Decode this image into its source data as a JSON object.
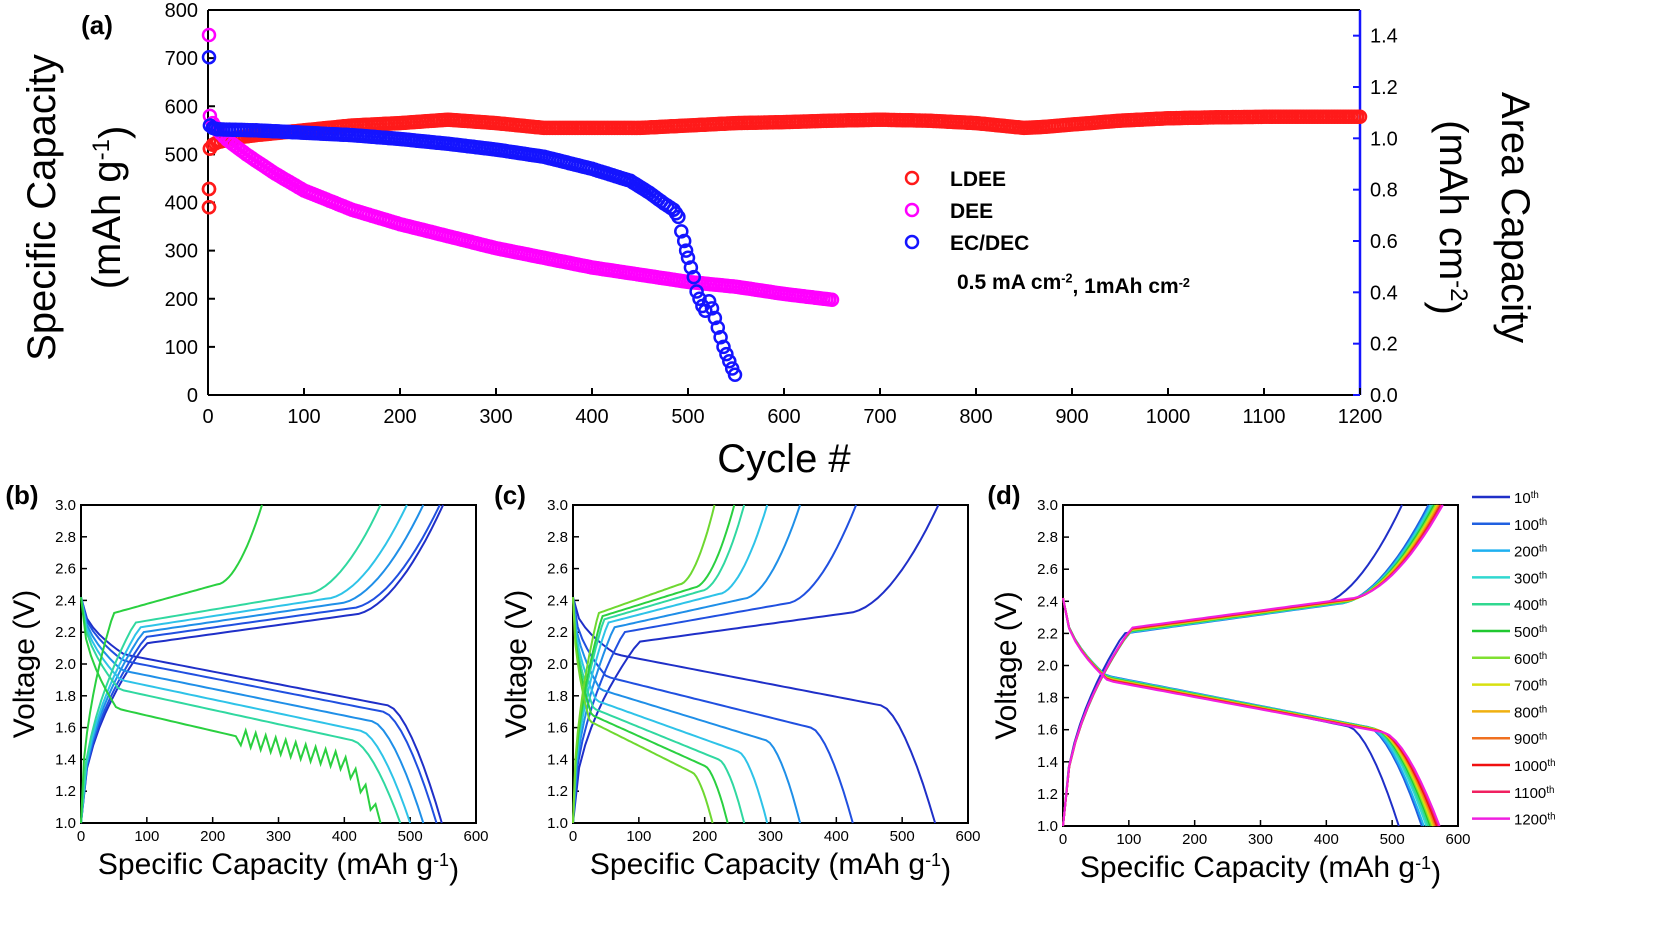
{
  "panels": {
    "a": "(a)",
    "b": "(b)",
    "c": "(c)",
    "d": "(d)"
  },
  "chart_data": [
    {
      "panel": "a",
      "type": "scatter",
      "xlabel": "Cycle #",
      "ylabel_left": [
        "Specific Capacity",
        "(mAh g",
        "-1",
        ")"
      ],
      "ylabel_right": [
        "Area Capacity",
        "(mAh cm",
        "-2",
        ")"
      ],
      "xlim": [
        0,
        1200
      ],
      "ylim_left": [
        0,
        800
      ],
      "ylim_right": [
        0.0,
        1.5
      ],
      "xticks": [
        0,
        100,
        200,
        300,
        400,
        500,
        600,
        700,
        800,
        900,
        1000,
        1100,
        1200
      ],
      "yticks_left": [
        0,
        100,
        200,
        300,
        400,
        500,
        600,
        700,
        800
      ],
      "yticks_right": [
        "0.0",
        "0.2",
        "0.4",
        "0.6",
        "0.8",
        "1.0",
        "1.2",
        "1.4"
      ],
      "annotation": {
        "text": "0.5 mA cm",
        "sup1": "-2",
        "mid": ", 1mAh cm",
        "sup2": "-2"
      },
      "legend_position": "center-right",
      "series": [
        {
          "name": "LDEE",
          "color": "#ff1a1a",
          "marker": "open-circle",
          "points": [
            [
              1,
              390
            ],
            [
              1,
              428
            ],
            [
              2,
              512
            ],
            [
              5,
              520
            ],
            [
              10,
              525
            ],
            [
              20,
              530
            ],
            [
              30,
              535
            ],
            [
              50,
              540
            ],
            [
              100,
              550
            ],
            [
              150,
              560
            ],
            [
              200,
              565
            ],
            [
              250,
              572
            ],
            [
              300,
              565
            ],
            [
              350,
              555
            ],
            [
              400,
              555
            ],
            [
              450,
              555
            ],
            [
              500,
              560
            ],
            [
              550,
              565
            ],
            [
              600,
              567
            ],
            [
              650,
              570
            ],
            [
              700,
              572
            ],
            [
              750,
              570
            ],
            [
              800,
              565
            ],
            [
              850,
              555
            ],
            [
              870,
              557
            ],
            [
              900,
              562
            ],
            [
              950,
              570
            ],
            [
              1000,
              575
            ],
            [
              1050,
              577
            ],
            [
              1100,
              578
            ],
            [
              1150,
              578
            ],
            [
              1200,
              578
            ]
          ]
        },
        {
          "name": "DEE",
          "color": "#ff00ff",
          "marker": "open-circle",
          "points": [
            [
              1,
              748
            ],
            [
              2,
              580
            ],
            [
              5,
              565
            ],
            [
              10,
              550
            ],
            [
              20,
              530
            ],
            [
              40,
              500
            ],
            [
              70,
              460
            ],
            [
              100,
              425
            ],
            [
              150,
              385
            ],
            [
              200,
              355
            ],
            [
              250,
              330
            ],
            [
              300,
              305
            ],
            [
              350,
              285
            ],
            [
              400,
              265
            ],
            [
              450,
              250
            ],
            [
              500,
              235
            ],
            [
              550,
              225
            ],
            [
              600,
              210
            ],
            [
              650,
              198
            ]
          ]
        },
        {
          "name": "EC/DEC",
          "color": "#1414ff",
          "marker": "open-circle",
          "points": [
            [
              1,
              702
            ],
            [
              2,
              560
            ],
            [
              5,
              555
            ],
            [
              10,
              552
            ],
            [
              50,
              550
            ],
            [
              100,
              545
            ],
            [
              150,
              540
            ],
            [
              200,
              532
            ],
            [
              250,
              522
            ],
            [
              300,
              510
            ],
            [
              350,
              495
            ],
            [
              400,
              470
            ],
            [
              440,
              445
            ],
            [
              460,
              420
            ],
            [
              475,
              398
            ],
            [
              485,
              385
            ],
            [
              490,
              370
            ],
            [
              493,
              340
            ],
            [
              496,
              320
            ],
            [
              498,
              300
            ],
            [
              500,
              285
            ],
            [
              503,
              265
            ],
            [
              506,
              245
            ],
            [
              509,
              215
            ],
            [
              512,
              200
            ],
            [
              515,
              185
            ],
            [
              518,
              175
            ],
            [
              522,
              195
            ],
            [
              525,
              180
            ],
            [
              528,
              160
            ],
            [
              531,
              140
            ],
            [
              534,
              120
            ],
            [
              537,
              100
            ],
            [
              540,
              85
            ],
            [
              543,
              70
            ],
            [
              546,
              55
            ],
            [
              549,
              42
            ]
          ]
        }
      ]
    },
    {
      "panel": "b",
      "type": "line",
      "xlabel": [
        "Specific Capacity (mAh g",
        "-1",
        ")"
      ],
      "ylabel": "Voltage (V)",
      "xlim": [
        0,
        600
      ],
      "ylim": [
        1.0,
        3.0
      ],
      "xticks": [
        0,
        100,
        200,
        300,
        400,
        500,
        600
      ],
      "yticks": [
        "1.0",
        "1.2",
        "1.4",
        "1.6",
        "1.8",
        "2.0",
        "2.2",
        "2.4",
        "2.6",
        "2.8",
        "3.0"
      ],
      "curves": [
        {
          "color": "#1f2fc8",
          "dis": 548,
          "ch": 550,
          "plat_d": 1.74,
          "plat_c": 2.23
        },
        {
          "color": "#2050e0",
          "dis": 540,
          "ch": 545,
          "plat_d": 1.7,
          "plat_c": 2.27
        },
        {
          "color": "#1f8fe8",
          "dis": 520,
          "ch": 520,
          "plat_d": 1.64,
          "plat_c": 2.3
        },
        {
          "color": "#2ec3e8",
          "dis": 500,
          "ch": 495,
          "plat_d": 1.58,
          "plat_c": 2.33
        },
        {
          "color": "#30d8a0",
          "dis": 485,
          "ch": 455,
          "plat_d": 1.52,
          "plat_c": 2.36
        },
        {
          "color": "#2ad040",
          "dis": 455,
          "ch": 275,
          "plat_d": 1.4,
          "plat_c": 2.42,
          "noisy": true
        }
      ]
    },
    {
      "panel": "c",
      "type": "line",
      "xlabel": [
        "Specific Capacity (mAh g",
        "-1",
        ")"
      ],
      "ylabel": "Voltage (V)",
      "xlim": [
        0,
        600
      ],
      "ylim": [
        1.0,
        3.0
      ],
      "xticks": [
        0,
        100,
        200,
        300,
        400,
        500,
        600
      ],
      "yticks": [
        "1.0",
        "1.2",
        "1.4",
        "1.6",
        "1.8",
        "2.0",
        "2.2",
        "2.4",
        "2.6",
        "2.8",
        "3.0"
      ],
      "curves": [
        {
          "color": "#1f2fc8",
          "dis": 550,
          "ch": 555,
          "plat_d": 1.74,
          "plat_c": 2.24
        },
        {
          "color": "#2050e0",
          "dis": 425,
          "ch": 430,
          "plat_d": 1.6,
          "plat_c": 2.3
        },
        {
          "color": "#1f8fe8",
          "dis": 345,
          "ch": 345,
          "plat_d": 1.52,
          "plat_c": 2.33
        },
        {
          "color": "#2ec3e8",
          "dis": 295,
          "ch": 295,
          "plat_d": 1.45,
          "plat_c": 2.36
        },
        {
          "color": "#30d8a0",
          "dis": 260,
          "ch": 260,
          "plat_d": 1.4,
          "plat_c": 2.38
        },
        {
          "color": "#2ad040",
          "dis": 235,
          "ch": 245,
          "plat_d": 1.36,
          "plat_c": 2.4
        },
        {
          "color": "#6ed830",
          "dis": 212,
          "ch": 215,
          "plat_d": 1.32,
          "plat_c": 2.42
        }
      ]
    },
    {
      "panel": "d",
      "type": "line",
      "xlabel": [
        "Specific Capacity (mAh g",
        "-1",
        ")"
      ],
      "ylabel": "Voltage (V)",
      "xlim": [
        0,
        600
      ],
      "ylim": [
        1.0,
        3.0
      ],
      "xticks": [
        0,
        100,
        200,
        300,
        400,
        500,
        600
      ],
      "yticks": [
        "1.0",
        "1.2",
        "1.4",
        "1.6",
        "1.8",
        "2.0",
        "2.2",
        "2.4",
        "2.6",
        "2.8",
        "3.0"
      ],
      "legend_position": "right-outside",
      "series": [
        {
          "name": "10",
          "sup": "th",
          "color": "#1f2fc8",
          "dis": 510,
          "ch": 515
        },
        {
          "name": "100",
          "sup": "th",
          "color": "#2060e0",
          "dis": 545,
          "ch": 555
        },
        {
          "name": "200",
          "sup": "th",
          "color": "#1fb0f0",
          "dis": 548,
          "ch": 558
        },
        {
          "name": "300",
          "sup": "th",
          "color": "#30d8d0",
          "dis": 552,
          "ch": 560
        },
        {
          "name": "400",
          "sup": "th",
          "color": "#30d890",
          "dis": 555,
          "ch": 562
        },
        {
          "name": "500",
          "sup": "th",
          "color": "#20c830",
          "dis": 558,
          "ch": 564
        },
        {
          "name": "600",
          "sup": "th",
          "color": "#80e030",
          "dis": 560,
          "ch": 566
        },
        {
          "name": "700",
          "sup": "th",
          "color": "#d8e010",
          "dis": 562,
          "ch": 568
        },
        {
          "name": "800",
          "sup": "th",
          "color": "#f0b010",
          "dis": 564,
          "ch": 570
        },
        {
          "name": "900",
          "sup": "th",
          "color": "#f07020",
          "dis": 566,
          "ch": 572
        },
        {
          "name": "1000",
          "sup": "th",
          "color": "#f01010",
          "dis": 568,
          "ch": 574
        },
        {
          "name": "1100",
          "sup": "th",
          "color": "#f02060",
          "dis": 570,
          "ch": 575
        },
        {
          "name": "1200",
          "sup": "th",
          "color": "#f020e0",
          "dis": 572,
          "ch": 577
        }
      ]
    }
  ]
}
